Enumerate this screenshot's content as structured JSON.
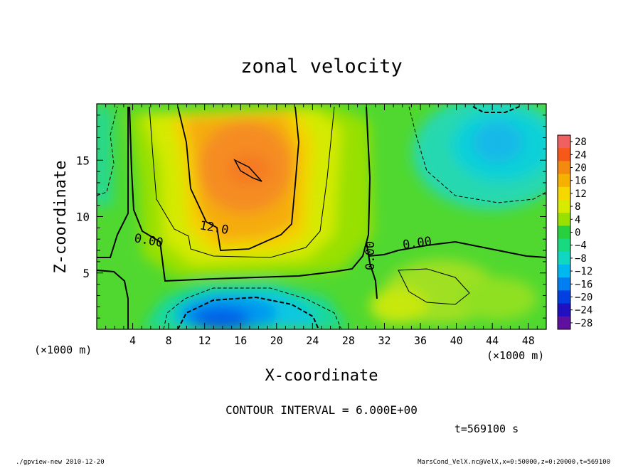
{
  "chart_data": {
    "type": "heatmap",
    "title": "zonal velocity",
    "xlabel": "X-coordinate",
    "ylabel": "Z-coordinate",
    "x_unit_label": "(×1000 m)",
    "y_unit_label": "(×1000 m)",
    "xlim": [
      0,
      50
    ],
    "ylim": [
      0,
      20
    ],
    "x_ticks": [
      4,
      8,
      12,
      16,
      20,
      24,
      28,
      32,
      36,
      40,
      44,
      48
    ],
    "y_ticks": [
      5,
      10,
      15
    ],
    "colorbar": {
      "levels": [
        28,
        24,
        20,
        16,
        12,
        8,
        4,
        0,
        -4,
        -8,
        -12,
        -16,
        -20,
        -24,
        -28
      ],
      "labels": [
        "28",
        "24",
        "20",
        "16",
        "12",
        "8",
        "4",
        "0",
        "−4",
        "−8",
        "−12",
        "−16",
        "−20",
        "−24",
        "−28"
      ],
      "colors": [
        "#f06060",
        "#f55818",
        "#f58a10",
        "#f5b000",
        "#f5d800",
        "#d8ea00",
        "#98e000",
        "#28d040",
        "#18d880",
        "#10d8c0",
        "#00b8f0",
        "#0080f0",
        "#0040e0",
        "#2010c0",
        "#6010a0"
      ]
    },
    "regions": [
      {
        "name": "positive core",
        "x_center": 16.5,
        "z_center": 14.5,
        "value_max": 18
      },
      {
        "name": "negative jet",
        "x_center": 15,
        "z_center": 1.5,
        "value_min": -18
      },
      {
        "name": "upper-right negative",
        "x_center": 44,
        "z_center": 15.5,
        "value_min": -10
      }
    ],
    "contour_labels": [
      "12.0",
      "0.00",
      "0.00",
      "0.00"
    ],
    "contour_interval": "CONTOUR INTERVAL = 6.000E+00",
    "time_label": "t=569100 s"
  },
  "footer": {
    "left": "./gpview-new  2010-12-20",
    "right": "MarsCond_VelX.nc@VelX,x=0:50000,z=0:20000,t=569100"
  }
}
